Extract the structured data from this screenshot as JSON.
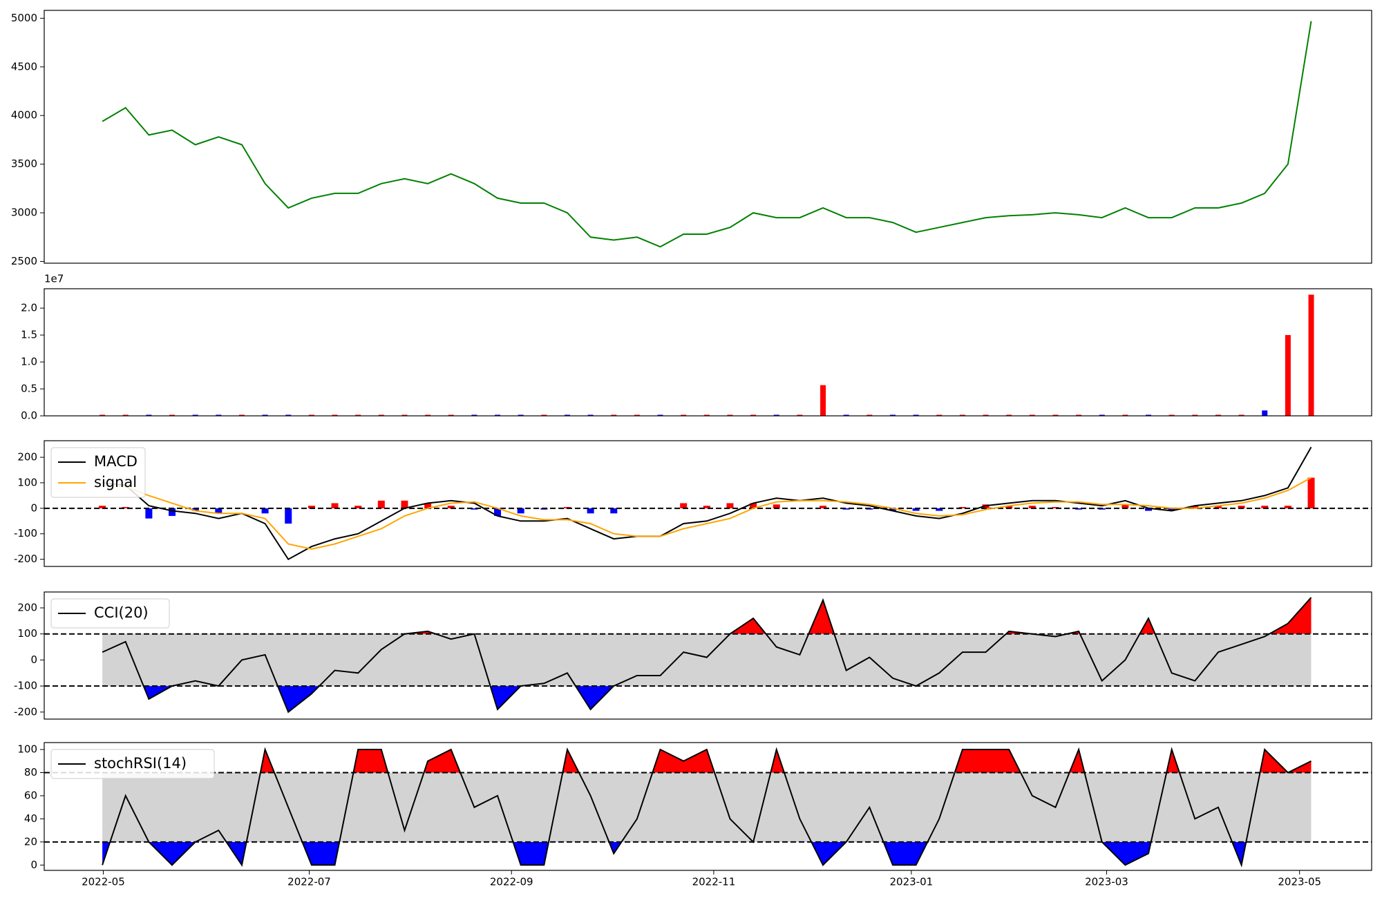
{
  "chart_data": [
    {
      "type": "line",
      "color": "green",
      "xlim": [
        -2.5,
        54.6
      ],
      "ylim": [
        2482,
        5081
      ],
      "yticks": [
        2500,
        3000,
        3500,
        4000,
        4500,
        5000
      ],
      "values": [
        3940,
        4080,
        3800,
        3850,
        3700,
        3780,
        3700,
        3300,
        3050,
        3150,
        3200,
        3200,
        3300,
        3350,
        3300,
        3400,
        3300,
        3150,
        3100,
        3100,
        3000,
        2750,
        2720,
        2750,
        2650,
        2780,
        2780,
        2850,
        3000,
        2950,
        2950,
        3050,
        2950,
        2950,
        2900,
        2800,
        2850,
        2900,
        2950,
        2970,
        2980,
        3000,
        2980,
        2950,
        3050,
        2950,
        2950,
        3050,
        3050,
        3100,
        3200,
        3500,
        4970
      ]
    },
    {
      "type": "bar",
      "offset_label": "1e7",
      "xlim": [
        -2.5,
        54.6
      ],
      "ylim": [
        0,
        2.36
      ],
      "yticks": [
        {
          "value": 0,
          "label": "0.0"
        },
        {
          "value": 0.5,
          "label": "0.5"
        },
        {
          "value": 1,
          "label": "1.0"
        },
        {
          "value": 1.5,
          "label": "1.5"
        },
        {
          "value": 2,
          "label": "2.0"
        }
      ],
      "values": [
        0.02,
        0.02,
        0.02,
        0.02,
        0.02,
        0.02,
        0.02,
        0.02,
        0.02,
        0.02,
        0.02,
        0.02,
        0.02,
        0.02,
        0.02,
        0.02,
        0.02,
        0.02,
        0.02,
        0.02,
        0.02,
        0.02,
        0.02,
        0.02,
        0.02,
        0.02,
        0.02,
        0.02,
        0.02,
        0.02,
        0.02,
        0.57,
        0.02,
        0.02,
        0.02,
        0.02,
        0.02,
        0.02,
        0.02,
        0.02,
        0.02,
        0.02,
        0.02,
        0.02,
        0.02,
        0.02,
        0.02,
        0.02,
        0.02,
        0.02,
        0.1,
        1.5,
        2.25
      ],
      "colors": [
        "red",
        "red",
        "blue",
        "red",
        "blue",
        "blue",
        "red",
        "blue",
        "blue",
        "red",
        "red",
        "red",
        "red",
        "red",
        "red",
        "red",
        "blue",
        "blue",
        "blue",
        "red",
        "blue",
        "blue",
        "red",
        "red",
        "blue",
        "red",
        "red",
        "red",
        "red",
        "blue",
        "red",
        "red",
        "blue",
        "red",
        "blue",
        "blue",
        "red",
        "red",
        "red",
        "red",
        "red",
        "red",
        "red",
        "blue",
        "red",
        "blue",
        "red",
        "red",
        "red",
        "red",
        "blue",
        "red",
        "red"
      ]
    },
    {
      "type": "macd",
      "xlim": [
        -2.5,
        54.6
      ],
      "ylim": [
        -228,
        265
      ],
      "yticks": [
        -200,
        -100,
        0,
        100,
        200
      ],
      "hline": 0,
      "up_color": "red",
      "down_color": "blue",
      "histogram": [
        10,
        5,
        -40,
        -30,
        -10,
        -20,
        0,
        -20,
        -60,
        10,
        20,
        10,
        30,
        30,
        20,
        10,
        -5,
        -30,
        -20,
        -5,
        5,
        -20,
        -20,
        0,
        0,
        20,
        10,
        20,
        20,
        15,
        0,
        10,
        -5,
        -5,
        -10,
        -10,
        -10,
        5,
        15,
        10,
        10,
        5,
        -5,
        -5,
        15,
        -10,
        -10,
        10,
        10,
        10,
        10,
        10,
        120
      ],
      "series": [
        {
          "name": "MACD",
          "color": "black",
          "values": [
            100,
            90,
            10,
            -10,
            -20,
            -40,
            -20,
            -60,
            -200,
            -150,
            -120,
            -100,
            -50,
            0,
            20,
            30,
            20,
            -30,
            -50,
            -50,
            -40,
            -80,
            -120,
            -110,
            -110,
            -60,
            -50,
            -20,
            20,
            40,
            30,
            40,
            20,
            10,
            -10,
            -30,
            -40,
            -20,
            10,
            20,
            30,
            30,
            20,
            10,
            30,
            0,
            -10,
            10,
            20,
            30,
            50,
            80,
            240
          ]
        },
        {
          "name": "signal",
          "color": "orange",
          "values": [
            90,
            85,
            50,
            20,
            -10,
            -20,
            -20,
            -40,
            -140,
            -160,
            -140,
            -110,
            -80,
            -30,
            0,
            20,
            25,
            0,
            -30,
            -45,
            -45,
            -60,
            -100,
            -110,
            -110,
            -80,
            -60,
            -40,
            0,
            25,
            30,
            30,
            25,
            15,
            0,
            -20,
            -30,
            -25,
            -5,
            10,
            20,
            25,
            25,
            15,
            15,
            10,
            0,
            0,
            10,
            20,
            40,
            70,
            120
          ]
        }
      ]
    },
    {
      "type": "oscillator",
      "xlim": [
        -2.5,
        54.6
      ],
      "ylim": [
        -227,
        261
      ],
      "yticks": [
        -200,
        -100,
        0,
        100,
        200
      ],
      "levels": [
        100,
        -100
      ],
      "band_color": "lightgray",
      "up_color": "red",
      "down_color": "blue",
      "series": [
        {
          "name": "CCI(20)",
          "color": "black",
          "values": [
            30,
            70,
            -150,
            -100,
            -80,
            -100,
            0,
            20,
            -200,
            -130,
            -40,
            -50,
            40,
            100,
            110,
            80,
            100,
            -190,
            -100,
            -90,
            -50,
            -190,
            -100,
            -60,
            -60,
            30,
            10,
            100,
            160,
            50,
            20,
            230,
            -40,
            10,
            -70,
            -100,
            -50,
            30,
            30,
            110,
            100,
            90,
            110,
            -80,
            0,
            160,
            -50,
            -80,
            30,
            60,
            90,
            140,
            240
          ]
        }
      ]
    },
    {
      "type": "oscillator",
      "xlim": [
        -2.5,
        54.6
      ],
      "ylim": [
        -4.6,
        106
      ],
      "yticks": [
        0,
        20,
        40,
        60,
        80,
        100
      ],
      "levels": [
        80,
        20
      ],
      "band_color": "lightgray",
      "up_color": "red",
      "down_color": "blue",
      "xticks": [
        {
          "value": 0.04,
          "label": "2022-05"
        },
        {
          "value": 8.9,
          "label": "2022-07"
        },
        {
          "value": 17.6,
          "label": "2022-09"
        },
        {
          "value": 26.3,
          "label": "2022-11"
        },
        {
          "value": 34.8,
          "label": "2023-01"
        },
        {
          "value": 43.2,
          "label": "2023-03"
        },
        {
          "value": 51.5,
          "label": "2023-05"
        }
      ],
      "series": [
        {
          "name": "stochRSI(14)",
          "color": "black",
          "values": [
            0,
            60,
            20,
            0,
            20,
            30,
            0,
            100,
            50,
            0,
            0,
            100,
            100,
            30,
            90,
            100,
            50,
            60,
            0,
            0,
            100,
            60,
            10,
            40,
            100,
            90,
            100,
            40,
            20,
            100,
            40,
            0,
            20,
            50,
            0,
            0,
            40,
            100,
            100,
            100,
            60,
            50,
            100,
            20,
            0,
            10,
            100,
            40,
            50,
            0,
            100,
            80,
            90
          ]
        }
      ]
    }
  ]
}
